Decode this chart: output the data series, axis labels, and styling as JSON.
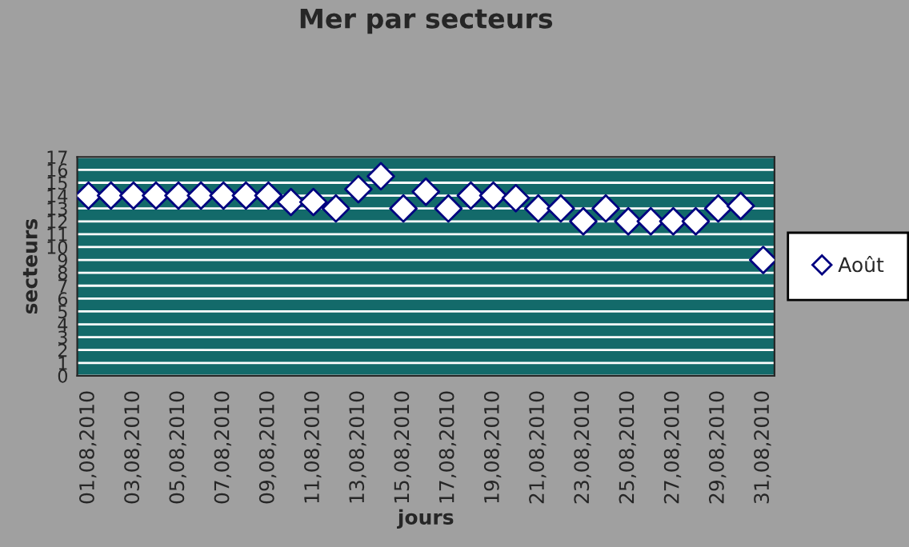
{
  "chart_data": {
    "type": "scatter",
    "title": "Mer par secteurs",
    "xlabel": "jours",
    "ylabel": "secteurs",
    "categories": [
      "01,08,2010",
      null,
      "03,08,2010",
      null,
      "05,08,2010",
      null,
      "07,08,2010",
      null,
      "09,08,2010",
      null,
      "11,08,2010",
      null,
      "13,08,2010",
      null,
      "15,08,2010",
      null,
      "17,08,2010",
      null,
      "19,08,2010",
      null,
      "21,08,2010",
      null,
      "23,08,2010",
      null,
      "25,08,2010",
      null,
      "27,08,2010",
      null,
      "29,08,2010",
      null,
      "31,08,2010"
    ],
    "series": [
      {
        "name": "Août",
        "color": "#ffffff",
        "values": [
          14,
          14,
          14,
          14,
          14,
          14,
          14,
          14,
          14,
          13.5,
          13.5,
          13,
          14.5,
          15.5,
          13,
          14.3,
          13,
          14,
          14,
          13.8,
          13,
          13,
          12,
          13,
          12,
          12,
          12,
          12,
          13,
          13.2,
          9
        ]
      }
    ],
    "ylim": [
      0,
      17
    ],
    "yticks": [
      0,
      1,
      2,
      3,
      4,
      5,
      6,
      7,
      8,
      9,
      10,
      11,
      12,
      13,
      14,
      15,
      16,
      17
    ],
    "grid": "y",
    "legend": "right",
    "marker": "diamond"
  }
}
